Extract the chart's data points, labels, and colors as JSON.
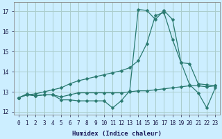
{
  "title": "",
  "xlabel": "Humidex (Indice chaleur)",
  "bg_color": "#cceeff",
  "line_color": "#2a7a70",
  "grid_color": "#aacccc",
  "xlim": [
    -0.5,
    23.5
  ],
  "ylim": [
    11.85,
    17.45
  ],
  "yticks": [
    12,
    13,
    14,
    15,
    16,
    17
  ],
  "xticks": [
    0,
    1,
    2,
    3,
    4,
    5,
    6,
    7,
    8,
    9,
    10,
    11,
    12,
    13,
    14,
    15,
    16,
    17,
    18,
    19,
    20,
    21,
    22,
    23
  ],
  "line_flat_x": [
    0,
    1,
    2,
    3,
    4,
    5,
    6,
    7,
    8,
    9,
    10,
    11,
    12,
    13,
    14,
    15,
    16,
    17,
    18,
    19,
    20,
    21,
    22,
    23
  ],
  "line_flat_y": [
    12.7,
    12.85,
    12.8,
    12.85,
    12.85,
    12.75,
    12.85,
    12.95,
    12.95,
    12.95,
    12.95,
    12.95,
    12.95,
    13.0,
    13.05,
    13.05,
    13.1,
    13.15,
    13.2,
    13.25,
    13.3,
    13.3,
    13.25,
    13.3
  ],
  "line_rise_x": [
    0,
    1,
    2,
    3,
    4,
    5,
    6,
    7,
    8,
    9,
    10,
    11,
    12,
    13,
    14,
    15,
    16,
    17,
    18,
    19,
    20,
    21,
    22,
    23
  ],
  "line_rise_y": [
    12.7,
    12.85,
    12.9,
    13.0,
    13.1,
    13.2,
    13.4,
    13.55,
    13.65,
    13.75,
    13.85,
    13.95,
    14.05,
    14.2,
    14.55,
    15.4,
    16.8,
    16.95,
    15.6,
    14.45,
    14.4,
    13.4,
    13.35,
    13.3
  ],
  "line_spike_x": [
    0,
    1,
    2,
    3,
    4,
    5,
    6,
    7,
    8,
    9,
    10,
    11,
    12,
    13,
    14,
    15,
    16,
    17,
    18,
    19,
    20,
    21,
    22,
    23
  ],
  "line_spike_y": [
    12.7,
    12.9,
    12.8,
    12.85,
    12.85,
    12.6,
    12.6,
    12.55,
    12.55,
    12.55,
    12.55,
    12.2,
    12.55,
    13.05,
    17.1,
    17.05,
    16.6,
    17.05,
    16.6,
    14.45,
    13.35,
    12.95,
    12.2,
    13.2
  ],
  "marker_size": 2.5,
  "lw": 0.9
}
